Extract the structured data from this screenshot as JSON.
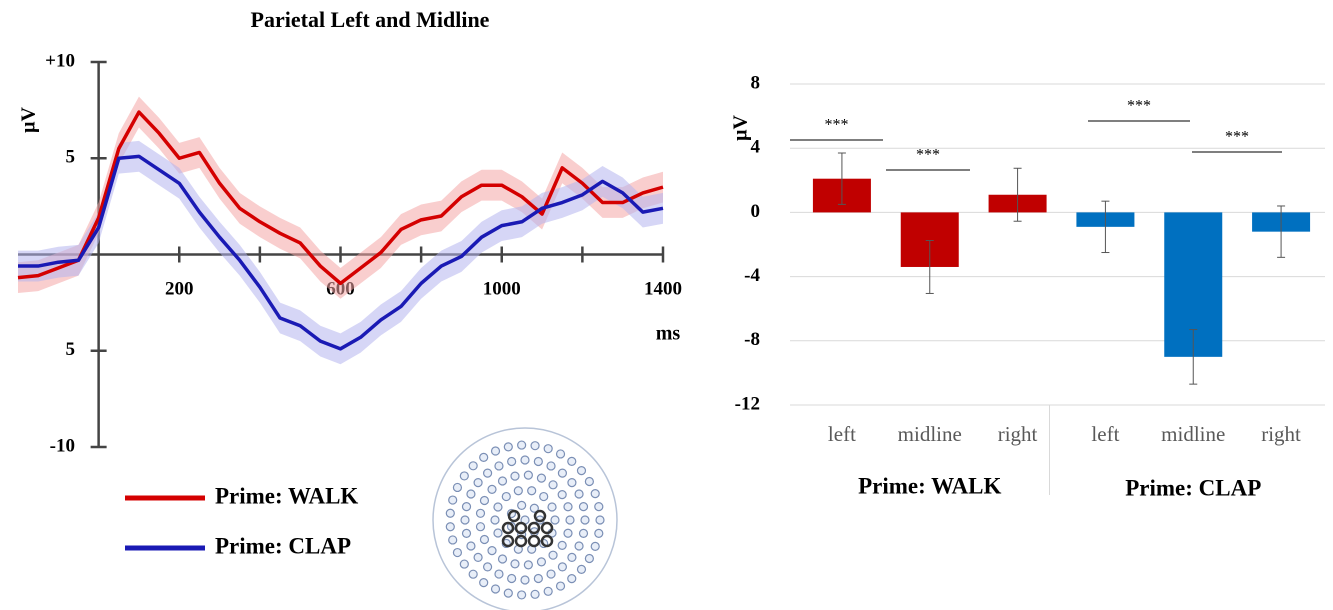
{
  "chart_data": [
    {
      "type": "line",
      "title": "Parietal Left and Midline",
      "y_label": "μV",
      "x_label": "ms",
      "x": [
        -200,
        -150,
        -100,
        -50,
        0,
        50,
        100,
        150,
        200,
        250,
        300,
        350,
        400,
        450,
        500,
        550,
        600,
        650,
        700,
        750,
        800,
        850,
        900,
        950,
        1000,
        1050,
        1100,
        1150,
        1200,
        1250,
        1300,
        1350,
        1400
      ],
      "series": [
        {
          "name": "Prime: WALK",
          "color": "#d40000",
          "band_color": "#f4a6a6",
          "error": 0.8,
          "values": [
            -1.2,
            -1.1,
            -0.7,
            -0.3,
            1.9,
            5.5,
            7.4,
            6.3,
            5.0,
            5.3,
            3.7,
            2.4,
            1.7,
            1.1,
            0.6,
            -0.6,
            -1.5,
            -0.7,
            0.1,
            1.3,
            1.8,
            2.0,
            3.0,
            3.6,
            3.6,
            3.0,
            2.1,
            4.5,
            3.7,
            2.7,
            2.7,
            3.2,
            3.5
          ]
        },
        {
          "name": "Prime: CLAP",
          "color": "#1a1ab4",
          "band_color": "#b4b4ee",
          "error": 0.8,
          "values": [
            -0.6,
            -0.6,
            -0.4,
            -0.3,
            1.4,
            5.0,
            5.1,
            4.4,
            3.7,
            2.2,
            0.9,
            -0.3,
            -1.7,
            -3.3,
            -3.7,
            -4.5,
            -4.9,
            -4.3,
            -3.4,
            -2.7,
            -1.5,
            -0.6,
            -0.1,
            0.9,
            1.5,
            1.7,
            2.4,
            2.7,
            3.1,
            3.8,
            3.2,
            2.2,
            2.4
          ]
        }
      ],
      "xlim": [
        -200,
        1400
      ],
      "xticks": [
        200,
        600,
        1000,
        1400
      ],
      "xminorticks": [
        400,
        800,
        1200
      ],
      "ylim": [
        -10,
        10
      ],
      "yticks": [
        {
          "value": 10,
          "label": "+10"
        },
        5,
        {
          "value": -5,
          "label": "5"
        },
        -10
      ]
    },
    {
      "type": "bar",
      "y_label": "μV",
      "categories": [
        "left",
        "midline",
        "right",
        "left",
        "midline",
        "right"
      ],
      "groups": [
        "Prime: WALK",
        "Prime: CLAP"
      ],
      "group_colors": [
        "#c00000",
        "#0070c0"
      ],
      "values": [
        2.1,
        -3.4,
        1.1,
        -0.9,
        -9.0,
        -1.2
      ],
      "errors": [
        1.6,
        1.65,
        1.65,
        1.6,
        1.7,
        1.6
      ],
      "annotations": [
        "***",
        "***",
        "***",
        "***"
      ],
      "ylim": [
        -12,
        8
      ],
      "yticks": [
        8,
        4,
        0,
        -4,
        -8,
        -12
      ],
      "grid": true
    }
  ]
}
